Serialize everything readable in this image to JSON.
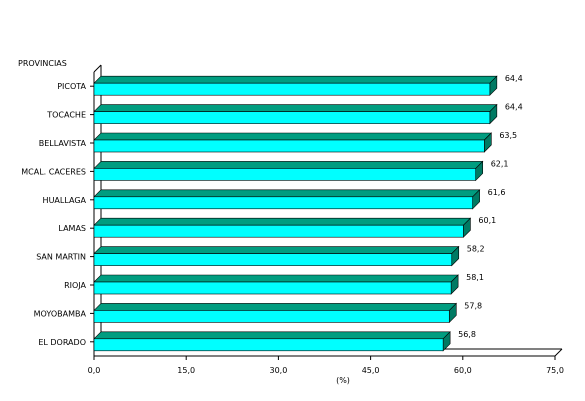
{
  "chart_data": {
    "type": "bar",
    "orientation": "horizontal",
    "style": "3d",
    "title": "",
    "ylabel": "PROVINCIAS",
    "xlabel": "(%)",
    "categories": [
      "PICOTA",
      "TOCACHE",
      "BELLAVISTA",
      "MCAL. CACERES",
      "HUALLAGA",
      "LAMAS",
      "SAN MARTIN",
      "RIOJA",
      "MOYOBAMBA",
      "EL DORADO"
    ],
    "values": [
      64.4,
      64.4,
      63.5,
      62.1,
      61.6,
      60.1,
      58.2,
      58.1,
      57.8,
      56.8
    ],
    "value_labels": [
      "64,4",
      "64,4",
      "63,5",
      "62,1",
      "61,6",
      "60,1",
      "58,2",
      "58,1",
      "57,8",
      "56,8"
    ],
    "xlim": [
      0,
      75
    ],
    "xticks": [
      0,
      15,
      30,
      45,
      60,
      75
    ],
    "xtick_labels": [
      "0,0",
      "15,0",
      "30,0",
      "45,0",
      "60,0",
      "75,0"
    ],
    "grid": false,
    "legend": "none",
    "colors": {
      "bar_front": "#00FFFF",
      "bar_top": "#009D80",
      "bar_side": "#007A63",
      "axis": "#000000"
    }
  }
}
